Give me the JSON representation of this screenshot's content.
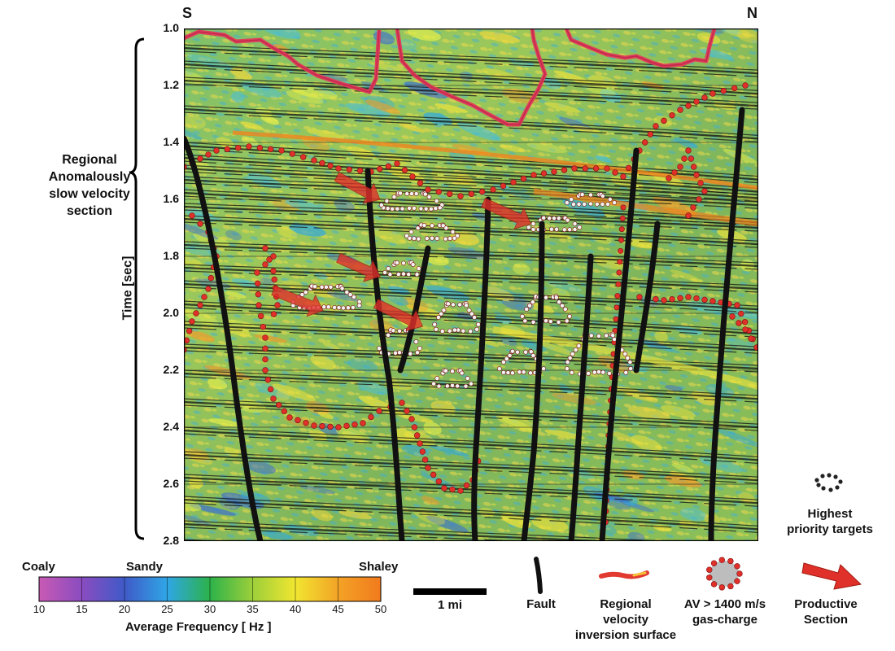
{
  "compass": {
    "left": "S",
    "right": "N"
  },
  "section_label": [
    "Regional",
    "Anomalously",
    "slow velocity",
    "section"
  ],
  "y_axis": {
    "label": "Time  [sec]",
    "ticks": [
      "1.0",
      "1.2",
      "1.4",
      "1.6",
      "1.8",
      "2.0",
      "2.2",
      "2.4",
      "2.6",
      "2.8"
    ],
    "range": [
      1.0,
      2.8
    ]
  },
  "colorbar": {
    "left_label": "Coaly",
    "mid_label": "Sandy",
    "right_label": "Shaley",
    "ticks": [
      "10",
      "15",
      "20",
      "25",
      "30",
      "35",
      "40",
      "45",
      "50"
    ],
    "title": "Average Frequency  [ Hz ]",
    "colors": [
      "#c85ab4",
      "#8a4cc0",
      "#3f5ac8",
      "#2fa6e6",
      "#2cb24a",
      "#9ccf3a",
      "#f1e630",
      "#f3a326",
      "#f27a1d"
    ]
  },
  "scale": {
    "label": "1 mi"
  },
  "legend": {
    "priority": [
      "Highest",
      "priority targets"
    ],
    "fault": "Fault",
    "velocity": [
      "Regional",
      "velocity",
      "inversion surface"
    ],
    "gas": [
      "AV > 1400 m/s",
      "gas-charge"
    ],
    "productive": [
      "Productive",
      "Section"
    ]
  },
  "colors": {
    "fault": "#111111",
    "velocity_line": "#e23a5c",
    "gas_dot": "#e0302a",
    "target_dot": "#f2f2f2",
    "arrow": "#e23a30"
  }
}
